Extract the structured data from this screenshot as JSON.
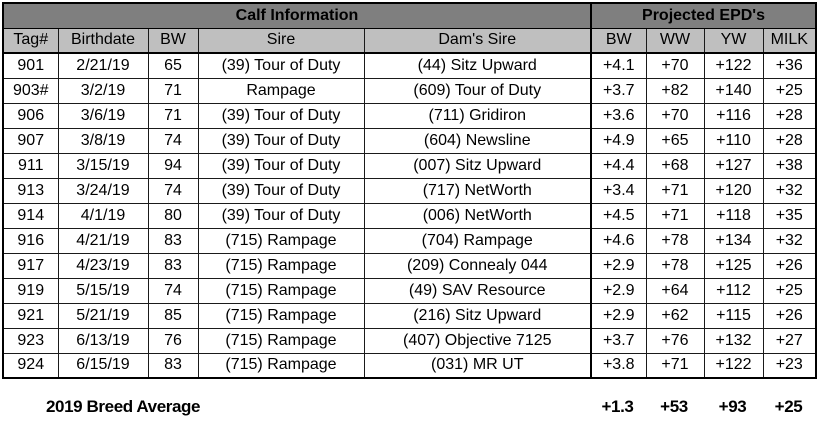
{
  "table": {
    "section_headers": [
      {
        "label": "Calf Information"
      },
      {
        "label": "Projected EPD's"
      }
    ],
    "columns": [
      "Tag#",
      "Birthdate",
      "BW",
      "Sire",
      "Dam's Sire",
      "BW",
      "WW",
      "YW",
      "MILK"
    ],
    "rows": [
      [
        "901",
        "2/21/19",
        "65",
        "(39) Tour of Duty",
        "(44) Sitz Upward",
        "+4.1",
        "+70",
        "+122",
        "+36"
      ],
      [
        "903#",
        "3/2/19",
        "71",
        "Rampage",
        "(609) Tour of Duty",
        "+3.7",
        "+82",
        "+140",
        "+25"
      ],
      [
        "906",
        "3/6/19",
        "71",
        "(39) Tour of Duty",
        "(711) Gridiron",
        "+3.6",
        "+70",
        "+116",
        "+28"
      ],
      [
        "907",
        "3/8/19",
        "74",
        "(39) Tour of Duty",
        "(604) Newsline",
        "+4.9",
        "+65",
        "+110",
        "+28"
      ],
      [
        "911",
        "3/15/19",
        "94",
        "(39) Tour of Duty",
        "(007) Sitz Upward",
        "+4.4",
        "+68",
        "+127",
        "+38"
      ],
      [
        "913",
        "3/24/19",
        "74",
        "(39) Tour of Duty",
        "(717) NetWorth",
        "+3.4",
        "+71",
        "+120",
        "+32"
      ],
      [
        "914",
        "4/1/19",
        "80",
        "(39) Tour of Duty",
        "(006) NetWorth",
        "+4.5",
        "+71",
        "+118",
        "+35"
      ],
      [
        "916",
        "4/21/19",
        "83",
        "(715) Rampage",
        "(704) Rampage",
        "+4.6",
        "+78",
        "+134",
        "+32"
      ],
      [
        "917",
        "4/23/19",
        "83",
        "(715) Rampage",
        "(209) Connealy 044",
        "+2.9",
        "+78",
        "+125",
        "+26"
      ],
      [
        "919",
        "5/15/19",
        "74",
        "(715) Rampage",
        "(49) SAV Resource",
        "+2.9",
        "+64",
        "+112",
        "+25"
      ],
      [
        "921",
        "5/21/19",
        "85",
        "(715) Rampage",
        "(216) Sitz Upward",
        "+2.9",
        "+62",
        "+115",
        "+26"
      ],
      [
        "923",
        "6/13/19",
        "76",
        "(715) Rampage",
        "(407) Objective 7125",
        "+3.7",
        "+76",
        "+132",
        "+27"
      ],
      [
        "924",
        "6/15/19",
        "83",
        "(715) Rampage",
        "(031) MR UT",
        "+3.8",
        "+71",
        "+122",
        "+23"
      ]
    ],
    "footer": {
      "label": "2019 Breed Average",
      "values": [
        "+1.3",
        "+53",
        "+93",
        "+25"
      ]
    }
  },
  "colors": {
    "section_header_bg": "#7f7f7f",
    "column_header_bg": "#bfbfbf",
    "grid_border": "#1a1a1a",
    "text": "#000000",
    "background": "#ffffff"
  }
}
